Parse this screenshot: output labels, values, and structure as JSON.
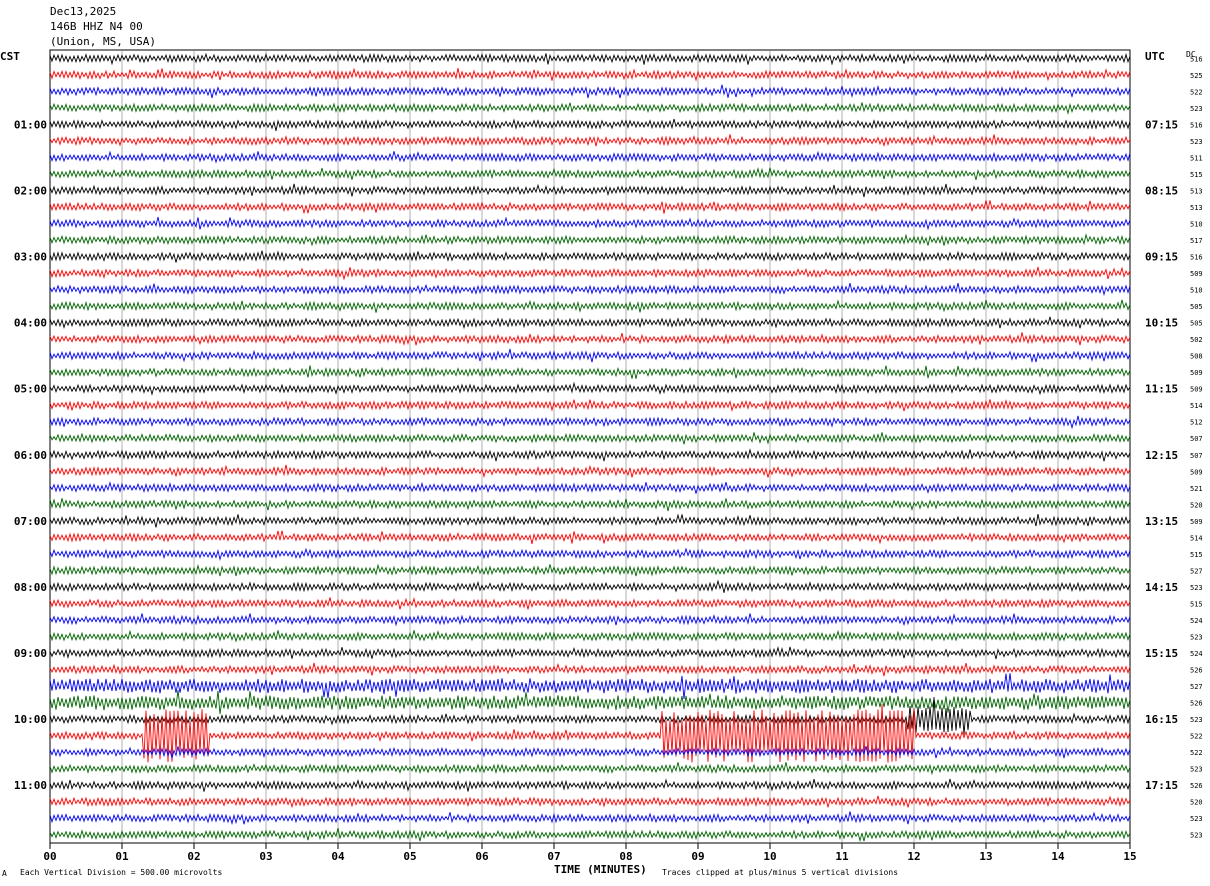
{
  "header": {
    "date": "Dec13,2025",
    "station": "146B HHZ N4 00",
    "location": "(Union, MS, USA)"
  },
  "left_tz": "CST",
  "right_tz": "UTC",
  "dc_label": "DC",
  "footer": {
    "scale_note": "Each Vertical Division =  500.00 microvolts",
    "clip_note": "Traces clipped at plus/minus 5 vertical divisions",
    "mark": "A"
  },
  "colors": {
    "black": "#000000",
    "red": "#ff0000",
    "blue": "#0000ff",
    "green": "#006400",
    "grid": "#7f7f7f"
  },
  "chart_data": {
    "type": "line",
    "title": "",
    "xlabel": "TIME (MINUTES)",
    "ylabel": "",
    "xlim": [
      0,
      15
    ],
    "x_ticks": [
      "00",
      "01",
      "02",
      "03",
      "04",
      "05",
      "06",
      "07",
      "08",
      "09",
      "10",
      "11",
      "12",
      "13",
      "14",
      "15"
    ],
    "trace_colors": [
      "black",
      "red",
      "blue",
      "green"
    ],
    "left_hour_labels": [
      "01:00",
      "02:00",
      "03:00",
      "04:00",
      "05:00",
      "06:00",
      "07:00",
      "08:00",
      "09:00",
      "10:00",
      "11:00"
    ],
    "right_hour_labels": [
      "07:15",
      "08:15",
      "09:15",
      "10:15",
      "11:15",
      "12:15",
      "13:15",
      "14:15",
      "15:15",
      "16:15",
      "17:15"
    ],
    "dc_offsets": [
      516,
      525,
      522,
      523,
      516,
      523,
      511,
      515,
      513,
      513,
      510,
      517,
      516,
      509,
      510,
      505,
      505,
      502,
      508,
      509,
      509,
      514,
      512,
      507,
      507,
      509,
      521,
      520,
      509,
      514,
      515,
      527,
      523,
      515,
      524,
      523,
      524,
      526,
      527,
      526,
      523,
      522,
      522,
      523,
      526,
      520,
      523,
      523
    ],
    "trace_activity": [
      {
        "trace": 38,
        "level": "elevated"
      },
      {
        "trace": 39,
        "level": "elevated"
      },
      {
        "trace": 40,
        "level": "burst",
        "from_min": 11.9,
        "to_min": 12.8
      },
      {
        "trace": 41,
        "level": "clipped",
        "from_min": 1.3,
        "to_min": 2.2
      },
      {
        "trace": 41,
        "level": "clipped",
        "from_min": 8.5,
        "to_min": 12.0
      }
    ]
  }
}
